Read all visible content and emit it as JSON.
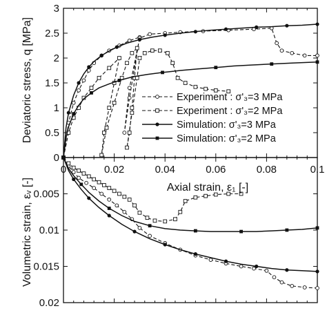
{
  "chart_data": [
    {
      "type": "line",
      "panel": "deviatoric-stress",
      "ylabel": "Deviatoric stress, q [MPa]",
      "xlim": [
        0,
        0.1
      ],
      "ylim": [
        0,
        3
      ],
      "yticks": [
        "0",
        "0.5",
        "1",
        "1.5",
        "2",
        "2.5",
        "3"
      ],
      "legend_placement": "center-right",
      "legend": [
        {
          "label": "Experiment : σ'₃=3 MPa",
          "style": "dashed-circle"
        },
        {
          "label": "Experiment : σ'₃=2 MPa",
          "style": "dashed-square"
        },
        {
          "label": "Simulation: σ'₃=3 MPa",
          "style": "solid-dot"
        },
        {
          "label": "Simulation: σ'₃=2 MPa",
          "style": "solid-square"
        }
      ],
      "series": [
        {
          "name": "Experiment : σ'₃=3 MPa",
          "style": "dashed",
          "marker": "circle",
          "x": [
            0,
            0.002,
            0.004,
            0.006,
            0.008,
            0.01,
            0.012,
            0.015,
            0.018,
            0.022,
            0.026,
            0.03,
            0.026,
            0.024,
            0.026,
            0.03,
            0.034,
            0.04,
            0.046,
            0.055,
            0.065,
            0.075,
            0.082,
            0.084,
            0.086,
            0.09,
            0.095,
            0.1
          ],
          "y": [
            0,
            0.7,
            1.1,
            1.35,
            1.55,
            1.75,
            1.9,
            2.05,
            2.15,
            2.25,
            2.35,
            2.42,
            1.2,
            0.5,
            1.4,
            2.4,
            2.48,
            2.5,
            2.52,
            2.54,
            2.56,
            2.58,
            2.6,
            2.3,
            2.15,
            2.1,
            2.05,
            2.05
          ]
        },
        {
          "name": "Experiment : σ'₃=2 MPa",
          "style": "dashed",
          "marker": "square",
          "x": [
            0,
            0.002,
            0.004,
            0.006,
            0.008,
            0.011,
            0.014,
            0.018,
            0.022,
            0.02,
            0.018,
            0.016,
            0.015,
            0.017,
            0.02,
            0.023,
            0.025,
            0.027,
            0.029,
            0.028,
            0.027,
            0.026,
            0.025,
            0.027,
            0.029,
            0.03,
            0.032,
            0.035,
            0.038,
            0.041,
            0.043,
            0.045,
            0.048,
            0.052,
            0.056,
            0.06,
            0.065
          ],
          "y": [
            0,
            0.5,
            0.8,
            1.0,
            1.2,
            1.4,
            1.6,
            1.8,
            2.0,
            1.5,
            1.0,
            0.5,
            0.05,
            0.6,
            1.1,
            1.6,
            1.9,
            2.1,
            2.2,
            1.6,
            1.0,
            0.5,
            0.2,
            0.9,
            1.6,
            2.0,
            2.1,
            2.15,
            2.15,
            2.1,
            1.9,
            1.6,
            1.5,
            1.42,
            1.38,
            1.35,
            1.33
          ]
        },
        {
          "name": "Simulation: σ'₃=3 MPa",
          "style": "solid",
          "marker": "dot",
          "x": [
            0,
            0.001,
            0.002,
            0.004,
            0.006,
            0.008,
            0.01,
            0.012,
            0.015,
            0.018,
            0.021,
            0.025,
            0.03,
            0.035,
            0.04,
            0.046,
            0.052,
            0.058,
            0.064,
            0.07,
            0.076,
            0.082,
            0.088,
            0.094,
            0.1
          ],
          "y": [
            0,
            0.6,
            0.9,
            1.25,
            1.5,
            1.68,
            1.82,
            1.93,
            2.05,
            2.14,
            2.22,
            2.3,
            2.37,
            2.42,
            2.46,
            2.5,
            2.53,
            2.56,
            2.58,
            2.6,
            2.62,
            2.63,
            2.65,
            2.66,
            2.68
          ]
        },
        {
          "name": "Simulation: σ'₃=2 MPa",
          "style": "solid",
          "marker": "square",
          "x": [
            0,
            0.001,
            0.002,
            0.004,
            0.006,
            0.008,
            0.011,
            0.014,
            0.018,
            0.022,
            0.027,
            0.033,
            0.039,
            0.046,
            0.053,
            0.06,
            0.067,
            0.074,
            0.082,
            0.09,
            0.1
          ],
          "y": [
            0,
            0.4,
            0.62,
            0.88,
            1.05,
            1.18,
            1.3,
            1.4,
            1.48,
            1.55,
            1.62,
            1.67,
            1.71,
            1.75,
            1.78,
            1.81,
            1.84,
            1.86,
            1.88,
            1.9,
            1.92
          ]
        }
      ]
    },
    {
      "type": "line",
      "panel": "volumetric-strain",
      "xlabel": "Axial strain, ε₁ [-]",
      "ylabel": "Volumetric strain, εᵥ [-]",
      "xlim": [
        0,
        0.1
      ],
      "ylim": [
        0,
        0.02
      ],
      "y_inverted": true,
      "xticks": [
        "0",
        "0.02",
        "0.04",
        "0.06",
        "0.08",
        "0.1"
      ],
      "yticks": [
        "0.005",
        "0.01",
        "0.015",
        "0.02"
      ],
      "series": [
        {
          "name": "Experiment : σ'₃=3 MPa",
          "style": "dashed",
          "marker": "circle",
          "x": [
            0,
            0.002,
            0.004,
            0.006,
            0.009,
            0.012,
            0.015,
            0.018,
            0.021,
            0.024,
            0.027,
            0.03,
            0.034,
            0.04,
            0.046,
            0.052,
            0.058,
            0.064,
            0.07,
            0.075,
            0.08,
            0.083,
            0.086,
            0.09,
            0.095,
            0.1
          ],
          "y": [
            0,
            0.0012,
            0.002,
            0.0028,
            0.0035,
            0.0042,
            0.005,
            0.0058,
            0.0066,
            0.0075,
            0.0085,
            0.0097,
            0.0108,
            0.0118,
            0.0127,
            0.0135,
            0.0141,
            0.0146,
            0.015,
            0.0153,
            0.0156,
            0.0165,
            0.0172,
            0.0177,
            0.0179,
            0.018
          ]
        },
        {
          "name": "Experiment : σ'₃=2 MPa",
          "style": "dashed",
          "marker": "square",
          "x": [
            0,
            0.002,
            0.004,
            0.006,
            0.008,
            0.01,
            0.012,
            0.014,
            0.016,
            0.018,
            0.02,
            0.022,
            0.024,
            0.026,
            0.028,
            0.03,
            0.033,
            0.036,
            0.04,
            0.044,
            0.046,
            0.048,
            0.052,
            0.056,
            0.06,
            0.065,
            0.07
          ],
          "y": [
            0,
            0.0008,
            0.0014,
            0.0018,
            0.0022,
            0.0026,
            0.003,
            0.0034,
            0.0038,
            0.0042,
            0.0046,
            0.005,
            0.0054,
            0.0058,
            0.0066,
            0.0076,
            0.0083,
            0.0087,
            0.0088,
            0.0085,
            0.0075,
            0.006,
            0.0055,
            0.0053,
            0.0051,
            0.005,
            0.005
          ]
        },
        {
          "name": "Simulation: σ'₃=3 MPa",
          "style": "solid",
          "marker": "dot",
          "x": [
            0,
            0.002,
            0.004,
            0.007,
            0.01,
            0.014,
            0.018,
            0.023,
            0.028,
            0.034,
            0.04,
            0.046,
            0.052,
            0.058,
            0.064,
            0.07,
            0.076,
            0.082,
            0.088,
            0.094,
            0.1
          ],
          "y": [
            0,
            0.0018,
            0.003,
            0.0044,
            0.0056,
            0.0069,
            0.008,
            0.0092,
            0.0102,
            0.0112,
            0.012,
            0.0127,
            0.0133,
            0.0138,
            0.0143,
            0.0147,
            0.015,
            0.0153,
            0.0155,
            0.0156,
            0.0157
          ]
        },
        {
          "name": "Simulation: σ'₃=2 MPa",
          "style": "solid",
          "marker": "square",
          "x": [
            0,
            0.002,
            0.004,
            0.007,
            0.01,
            0.014,
            0.018,
            0.023,
            0.028,
            0.034,
            0.04,
            0.046,
            0.052,
            0.058,
            0.064,
            0.07,
            0.076,
            0.082,
            0.088,
            0.094,
            0.1
          ],
          "y": [
            0,
            0.0015,
            0.0025,
            0.0037,
            0.0048,
            0.006,
            0.007,
            0.008,
            0.0088,
            0.0094,
            0.0098,
            0.01,
            0.0101,
            0.0102,
            0.0102,
            0.0102,
            0.0102,
            0.0101,
            0.01,
            0.0099,
            0.0097
          ]
        }
      ]
    }
  ],
  "colors": {
    "ink": "#111111",
    "background": "#ffffff"
  }
}
